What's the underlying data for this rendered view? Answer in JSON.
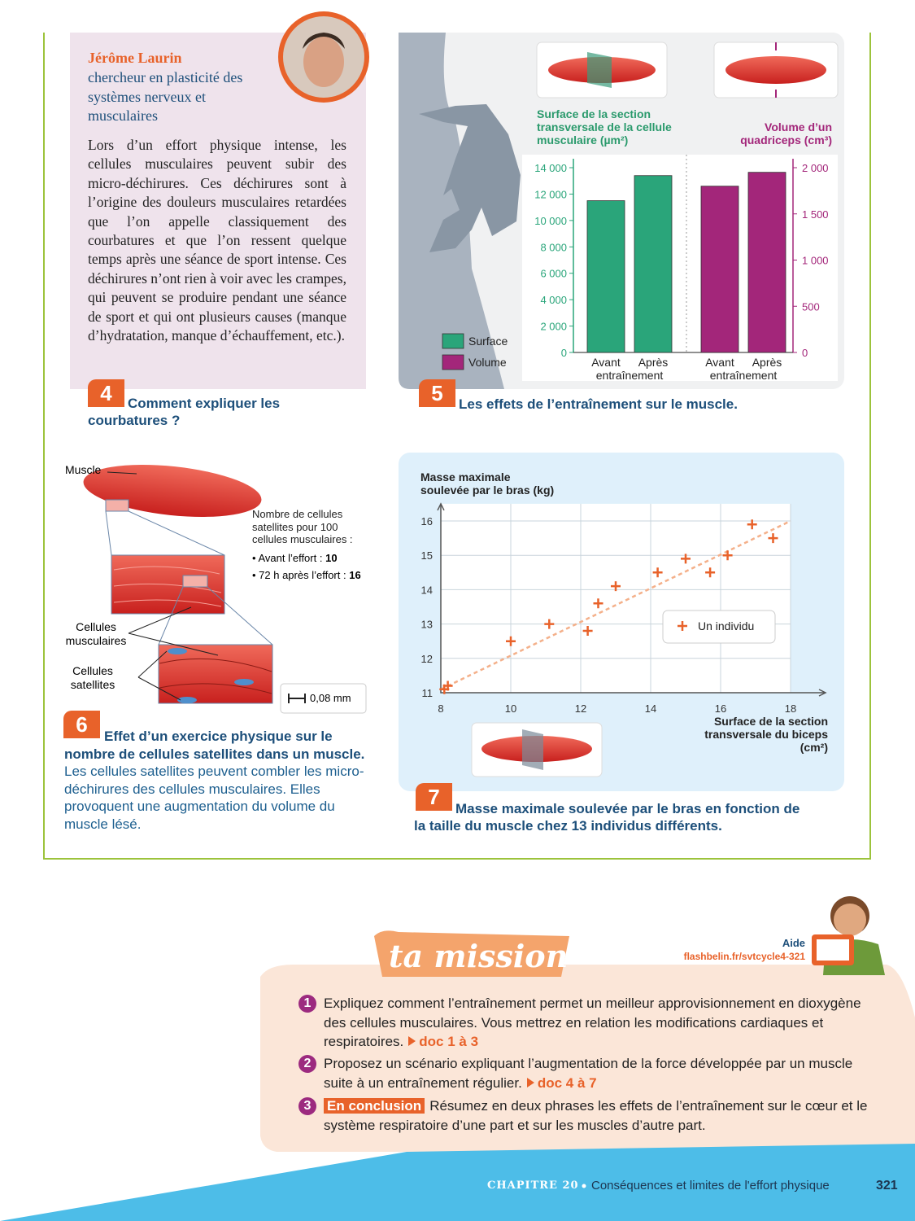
{
  "doc4": {
    "number": "4",
    "author": "Jérôme Laurin",
    "role": "chercheur en plasticité des systèmes nerveux et musculaires",
    "text": "Lors d’un effort physique intense, les cellules musculaires peuvent subir des micro-déchirures. Ces déchirures sont à l’origine des douleurs musculaires retardées que l’on appelle classiquement des courbatures et que l’on ressent quelque temps après une séance de sport intense. Ces déchirures n’ont rien à voir avec les crampes, qui peuvent se produire pendant une séance de sport et qui ont plusieurs causes (manque d’hydratation, manque d’échauffement, etc.).",
    "caption": "Comment expliquer les courbatures ?"
  },
  "doc5": {
    "number": "5",
    "caption": "Les effets de l’entraînement sur le muscle.",
    "chart": {
      "type": "bar",
      "y_title": "Surface de la section transversale de la cellule musculaire (µm²)",
      "y2_title": "Volume d’un quadriceps (cm³)",
      "categories": [
        "Avant",
        "Après",
        "Avant",
        "Après"
      ],
      "group_labels": [
        "entraînement",
        "entraînement"
      ],
      "series": [
        {
          "name": "Surface",
          "color": "#2aa57a",
          "values": [
            11500,
            13400,
            null,
            null
          ]
        },
        {
          "name": "Volume",
          "color": "#a3267a",
          "axis": "y2",
          "values": [
            null,
            null,
            1800,
            1950
          ]
        }
      ],
      "ylim": [
        0,
        14000
      ],
      "yticks": [
        0,
        {
          "value": 2000,
          "label": "2 000"
        },
        {
          "value": 4000,
          "label": "4 000"
        },
        {
          "value": 6000,
          "label": "6 000"
        },
        {
          "value": 8000,
          "label": "8 000"
        },
        {
          "value": 10000,
          "label": "10 000"
        },
        {
          "value": 12000,
          "label": "12 000"
        },
        {
          "value": 14000,
          "label": "14 000"
        }
      ],
      "y2lim": [
        0,
        2000
      ],
      "y2ticks": [
        0,
        500,
        {
          "value": 1000,
          "label": "1 000"
        },
        {
          "value": 1500,
          "label": "1 500"
        },
        {
          "value": 2000,
          "label": "2 000"
        }
      ]
    }
  },
  "doc6": {
    "number": "6",
    "labels": {
      "muscle": "Muscle",
      "fibers": "Cellules musculaires",
      "satellites": "Cellules satellites",
      "scale": "0,08 mm"
    },
    "note": {
      "title": "Nombre de cellules satellites pour 100 cellules musculaires :",
      "items": [
        {
          "label": "• Avant l’effort :",
          "value": 10
        },
        {
          "label": "• 72 h après l’effort :",
          "value": 16
        }
      ]
    },
    "caption": "Effet d’un exercice physique sur le nombre de cellules satellites dans un muscle.",
    "text": "Les cellules satellites peuvent combler les micro-déchirures des cellules musculaires. Elles provoquent une augmentation du volume du muscle lésé."
  },
  "doc7": {
    "number": "7",
    "caption": "Masse maximale soulevée par le bras en fonction de la taille du muscle chez 13 individus différents.",
    "chart": {
      "type": "scatter",
      "y_title": "Masse maximale soulevée par le bras (kg)",
      "x_title": "Surface de la section transversale du biceps (cm²)",
      "legend": "Un individu",
      "color": "#e8622a",
      "x": [
        8.1,
        8.2,
        10,
        11.1,
        12.2,
        12.5,
        13,
        14.2,
        15,
        15.7,
        16.2,
        16.9,
        17.5
      ],
      "y": [
        11.1,
        11.2,
        12.5,
        13,
        12.8,
        13.6,
        14.1,
        14.5,
        14.9,
        14.5,
        15,
        15.9,
        15.5
      ],
      "trend_line": {
        "x": [
          8,
          18
        ],
        "y": [
          11.1,
          16
        ]
      },
      "xlim": [
        8,
        19
      ],
      "xticks": [
        8,
        10,
        12,
        14,
        16,
        18
      ],
      "ylim": [
        11,
        16.5
      ],
      "yticks": [
        11,
        12,
        13,
        14,
        15,
        16
      ],
      "grid": true
    }
  },
  "mission": {
    "title": "ta mission",
    "help": "Aide",
    "link": "flashbelin.fr/svtcycle4-321",
    "items": [
      {
        "number": "1",
        "text": "Expliquez comment l’entraînement permet un meilleur approvisionnement en dioxygène des cellules musculaires. Vous mettrez en relation les modifications cardiaques et respiratoires.",
        "ref": "doc 1 à 3"
      },
      {
        "number": "2",
        "text": "Proposez un scénario expliquant l’augmentation de la force développée par un muscle suite à un entraînement régulier.",
        "ref": "doc 4 à 7"
      },
      {
        "number": "3",
        "badge": "En conclusion",
        "text": "Résumez en deux phrases les effets de l’entraînement sur le cœur et le système respiratoire d’une part et sur les muscles d’autre part."
      }
    ]
  },
  "footer": {
    "chapter": "CHAPITRE 20",
    "title": "Conséquences et limites de l'effort physique",
    "page": "321"
  }
}
